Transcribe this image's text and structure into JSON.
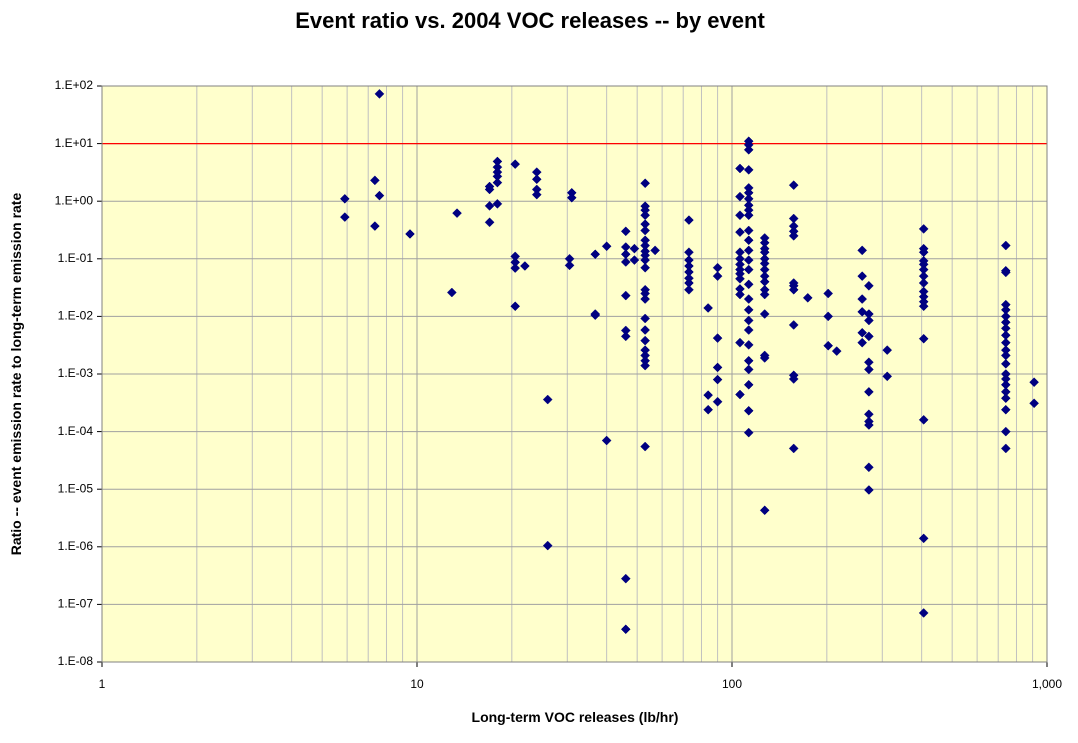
{
  "chart_data": {
    "type": "scatter",
    "title": "Event ratio vs. 2004 VOC releases -- by event",
    "x_label": "Long-term VOC releases (lb/hr)",
    "y_label": "Ratio -- event emission rate to long-term emission rate",
    "xlog": true,
    "ylog": true,
    "grid": true,
    "color": "#000080",
    "plot_background": "#ffffcc",
    "reference_line": {
      "value": 10,
      "color": "#ff0000"
    },
    "xlim": [
      1,
      1000
    ],
    "ylim": [
      1e-08,
      100
    ],
    "xticks": [
      1,
      10,
      100,
      {
        "value": 1000,
        "label": "1,000"
      }
    ],
    "xminorticks": [
      2,
      3,
      4,
      5,
      6,
      7,
      8,
      9,
      20,
      30,
      40,
      50,
      60,
      70,
      80,
      90,
      200,
      300,
      400,
      500,
      600,
      700,
      800,
      900
    ],
    "yticks": [
      {
        "value": 1e-08,
        "label": "1.E-08"
      },
      {
        "value": 1e-07,
        "label": "1.E-07"
      },
      {
        "value": 1e-06,
        "label": "1.E-06"
      },
      {
        "value": 1e-05,
        "label": "1.E-05"
      },
      {
        "value": 0.0001,
        "label": "1.E-04"
      },
      {
        "value": 0.001,
        "label": "1.E-03"
      },
      {
        "value": 0.01,
        "label": "1.E-02"
      },
      {
        "value": 0.1,
        "label": "1.E-01"
      },
      {
        "value": 1,
        "label": "1.E+00"
      },
      {
        "value": 10,
        "label": "1.E+01"
      },
      {
        "value": 100,
        "label": "1.E+02"
      }
    ],
    "x": [
      5.9,
      5.9,
      7.35,
      7.35,
      7.6,
      7.6,
      9.5,
      12.9,
      13.4,
      17,
      17,
      17,
      17,
      18,
      18,
      18,
      18,
      18,
      18,
      20.5,
      20.5,
      20.5,
      20.5,
      20.5,
      22,
      24,
      24,
      24,
      24,
      26,
      26,
      30.5,
      30.5,
      31,
      31,
      36.8,
      36.8,
      36.8,
      40,
      40,
      46,
      46,
      46,
      46,
      46,
      46,
      46,
      46,
      46,
      49,
      49,
      53,
      53,
      53,
      53,
      53,
      53,
      53,
      53,
      53,
      53,
      53,
      53,
      53,
      53,
      53,
      53,
      53,
      53,
      53,
      53,
      53,
      53,
      53,
      57,
      73,
      73,
      73,
      73,
      73,
      73,
      73,
      73,
      84,
      84,
      84,
      90,
      90,
      90,
      90,
      90,
      90,
      106,
      106,
      106,
      106,
      106,
      106,
      106,
      106,
      106,
      106,
      106,
      106,
      106,
      106,
      113,
      113,
      113,
      113,
      113,
      113,
      113,
      113,
      113,
      113,
      113,
      113,
      113,
      113,
      113,
      113,
      113,
      113,
      113,
      113,
      113,
      113,
      113,
      113,
      113,
      113,
      127,
      127,
      127,
      127,
      127,
      127,
      127,
      127,
      127,
      127,
      127,
      127,
      127,
      127,
      127,
      157,
      157,
      157,
      157,
      157,
      157,
      157,
      157,
      157,
      157,
      157,
      157,
      174,
      202,
      202,
      202,
      215,
      259,
      259,
      259,
      259,
      259,
      259,
      272,
      272,
      272,
      272,
      272,
      272,
      272,
      272,
      272,
      272,
      272,
      272,
      311,
      311,
      406,
      406,
      406,
      406,
      406,
      406,
      406,
      406,
      406,
      406,
      406,
      406,
      406,
      406,
      406,
      406,
      740,
      740,
      740,
      740,
      740,
      740,
      740,
      740,
      740,
      740,
      740,
      740,
      740,
      740,
      740,
      740,
      740,
      740,
      740,
      740,
      740,
      910,
      910
    ],
    "values": [
      1.1,
      0.53,
      2.3,
      0.37,
      73,
      1.25,
      0.27,
      0.026,
      0.62,
      0.43,
      0.83,
      1.6,
      1.8,
      4.9,
      3.9,
      3.2,
      2.7,
      2.1,
      0.9,
      4.4,
      0.11,
      0.087,
      0.069,
      0.015,
      0.075,
      3.2,
      2.4,
      1.6,
      1.3,
      0.00036,
      1.05e-06,
      0.1,
      0.077,
      1.4,
      1.15,
      0.12,
      0.011,
      0.0105,
      0.165,
      7e-05,
      0.3,
      0.16,
      0.12,
      0.088,
      0.023,
      0.0057,
      0.0045,
      2.8e-07,
      3.7e-08,
      0.15,
      0.095,
      2.05,
      0.82,
      0.7,
      0.57,
      0.4,
      0.31,
      0.21,
      0.17,
      0.135,
      0.115,
      0.095,
      0.07,
      0.029,
      0.025,
      0.02,
      0.0092,
      0.0058,
      0.0038,
      0.0026,
      0.0021,
      0.0017,
      0.0014,
      5.5e-05,
      0.14,
      0.47,
      0.13,
      0.095,
      0.075,
      0.059,
      0.046,
      0.038,
      0.029,
      0.014,
      0.00043,
      0.00024,
      0.07,
      0.05,
      0.0042,
      0.0008,
      0.0013,
      0.00033,
      3.7,
      1.2,
      0.57,
      0.29,
      0.13,
      0.1,
      0.08,
      0.065,
      0.055,
      0.045,
      0.03,
      0.024,
      0.0035,
      0.00044,
      11,
      9.5,
      7.8,
      3.5,
      1.7,
      1.4,
      1.1,
      0.85,
      0.7,
      0.57,
      0.31,
      0.21,
      0.14,
      0.095,
      0.065,
      0.036,
      0.02,
      0.013,
      0.0085,
      0.0058,
      0.0032,
      0.0017,
      0.0012,
      0.00065,
      0.00023,
      9.6e-05,
      0.23,
      0.19,
      0.15,
      0.13,
      0.1,
      0.083,
      0.065,
      0.05,
      0.04,
      0.029,
      0.024,
      0.011,
      0.0021,
      0.0019,
      4.3e-06,
      1.9,
      0.5,
      0.37,
      0.3,
      0.25,
      0.038,
      0.034,
      0.029,
      0.0071,
      0.00095,
      0.00082,
      5.1e-05,
      0.021,
      0.025,
      0.01,
      0.0031,
      0.0025,
      0.14,
      0.05,
      0.02,
      0.012,
      0.0052,
      0.0035,
      0.034,
      0.011,
      0.0085,
      0.0045,
      0.0016,
      0.0012,
      0.00049,
      0.0002,
      0.00015,
      0.00013,
      2.4e-05,
      9.7e-06,
      0.0026,
      0.00091,
      0.33,
      0.15,
      0.13,
      0.092,
      0.08,
      0.065,
      0.05,
      0.038,
      0.027,
      0.022,
      0.018,
      0.015,
      0.0041,
      0.00016,
      1.4e-06,
      7.1e-08,
      0.17,
      0.062,
      0.058,
      0.016,
      0.013,
      0.01,
      0.0079,
      0.0062,
      0.0047,
      0.0035,
      0.0026,
      0.0021,
      0.0015,
      0.001,
      0.00082,
      0.00065,
      0.00049,
      0.00038,
      0.00024,
      0.0001,
      5.1e-05,
      0.00072,
      0.00031
    ]
  }
}
